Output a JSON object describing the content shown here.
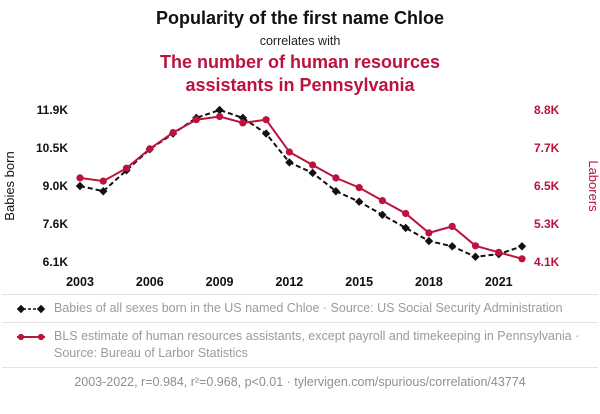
{
  "header": {
    "title": "Popularity of the first name Chloe",
    "connector": "correlates with",
    "subtitle": "The number of human resources assistants in Pennsylvania"
  },
  "colors": {
    "accent_red": "#bb133e",
    "series_black": "#111111",
    "legend_gray": "#9b9b9b"
  },
  "chart_data": {
    "type": "line",
    "title": "Popularity of the first name Chloe correlates with The number of human resources assistants in Pennsylvania",
    "x": [
      2003,
      2004,
      2005,
      2006,
      2007,
      2008,
      2009,
      2010,
      2011,
      2012,
      2013,
      2014,
      2015,
      2016,
      2017,
      2018,
      2019,
      2020,
      2021,
      2022
    ],
    "x_ticks": [
      2003,
      2006,
      2009,
      2012,
      2015,
      2018,
      2021
    ],
    "left_axis": {
      "label": "Babies born",
      "ticks": [
        "11.9K",
        "10.5K",
        "9.0K",
        "7.6K",
        "6.1K"
      ],
      "min": 6.1,
      "max": 11.9
    },
    "right_axis": {
      "label": "Laborers",
      "ticks": [
        "8.8K",
        "7.7K",
        "6.5K",
        "5.3K",
        "4.1K"
      ],
      "min": 4.1,
      "max": 8.8
    },
    "grid": false,
    "legend_position": "bottom",
    "series": [
      {
        "name": "Babies of all sexes born in the US named Chloe",
        "axis": "left",
        "color": "#111111",
        "style": "dashed",
        "marker": "diamond",
        "values": [
          9.0,
          8.8,
          9.6,
          10.4,
          11.0,
          11.6,
          11.9,
          11.6,
          11.0,
          9.9,
          9.5,
          8.8,
          8.4,
          7.9,
          7.4,
          6.9,
          6.7,
          6.3,
          6.4,
          6.7
        ]
      },
      {
        "name": "BLS estimate of human resources assistants, except payroll and timekeeping in Pennsylvania",
        "axis": "right",
        "color": "#bb133e",
        "style": "solid",
        "marker": "circle",
        "values": [
          6.7,
          6.6,
          7.0,
          7.6,
          8.1,
          8.5,
          8.6,
          8.4,
          8.5,
          7.5,
          7.1,
          6.7,
          6.4,
          6.0,
          5.6,
          5.0,
          5.2,
          4.6,
          4.4,
          4.2
        ]
      }
    ]
  },
  "legend": [
    {
      "text": "Babies of all sexes born in the US named Chloe · Source: US Social Security Administration"
    },
    {
      "text": "BLS estimate of human resources assistants, except payroll and timekeeping in Pennsylvania · Source: Bureau of Larbor Statistics"
    }
  ],
  "footer": {
    "text": "2003-2022, r=0.984, r²=0.968, p<0.01 · tylervigen.com/spurious/correlation/43774"
  }
}
